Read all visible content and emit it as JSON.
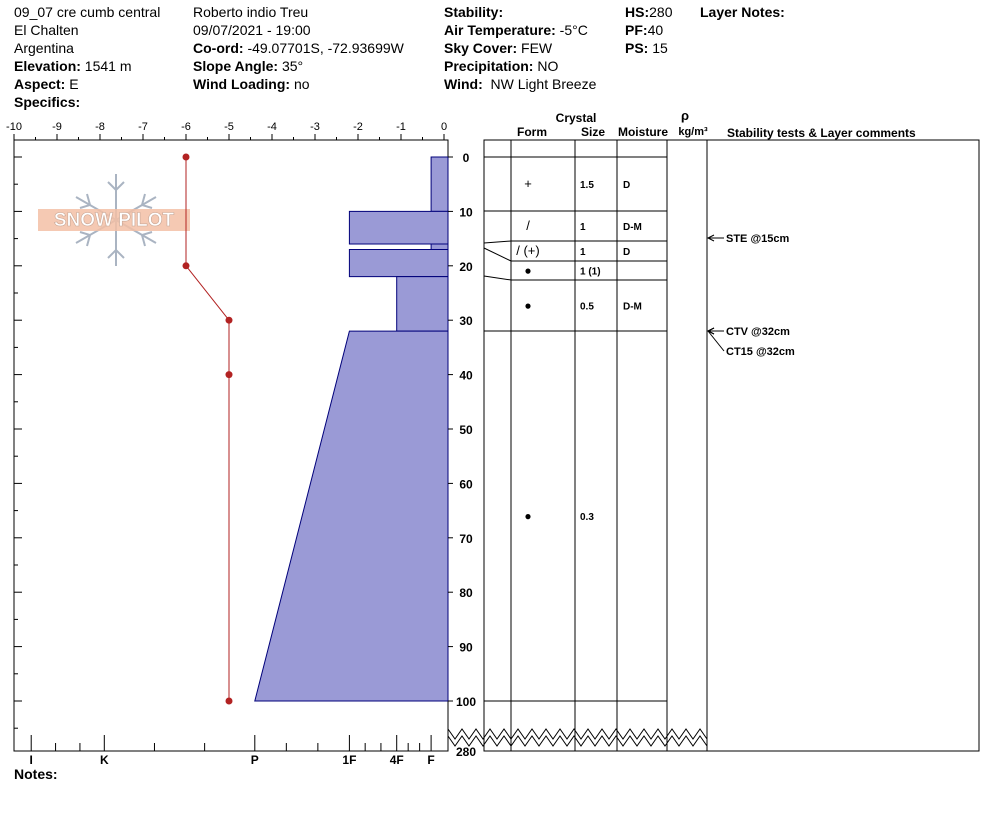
{
  "header": {
    "site_name": "09_07 cre cumb central",
    "location": "El Chalten",
    "country": "Argentina",
    "elevation_label": "Elevation:",
    "elevation_value": "1541 m",
    "aspect_label": "Aspect:",
    "aspect_value": "E",
    "specifics_label": "Specifics:",
    "observer": "Roberto indio Treu",
    "datetime": "09/07/2021 - 19:00",
    "coord_label": "Co-ord:",
    "coord_value": "-49.07701S, -72.93699W",
    "slope_label": "Slope Angle:",
    "slope_value": "35°",
    "windload_label": "Wind Loading:",
    "windload_value": "no",
    "stability_label": "Stability:",
    "airtemp_label": "Air Temperature:",
    "airtemp_value": "-5°C",
    "sky_label": "Sky Cover:",
    "sky_value": "FEW",
    "precip_label": "Precipitation:",
    "precip_value": "NO",
    "wind_label": "Wind:",
    "wind_value": "NW Light Breeze",
    "hs_label": "HS:",
    "hs_value": "280",
    "pf_label": "PF:",
    "pf_value": "40",
    "ps_label": "PS:",
    "ps_value": "15",
    "layer_notes_label": "Layer Notes:",
    "notes_label": "Notes:",
    "logo_text": "SNOW PILOT"
  },
  "columns": {
    "crystal": "Crystal",
    "form": "Form",
    "size": "Size",
    "moisture": "Moisture",
    "rho": "ρ",
    "density_unit": "kg/m³",
    "stability": "Stability tests & Layer comments"
  },
  "colors": {
    "hardness_fill": "#9a9ad6",
    "hardness_stroke": "#00007a",
    "temp_line": "#b22222"
  },
  "chart_data": {
    "type": "snow-profile",
    "temp_axis": {
      "ticks": [
        -10,
        -9,
        -8,
        -7,
        -6,
        -5,
        -4,
        -3,
        -2,
        -1,
        0
      ],
      "range": [
        -10,
        0
      ]
    },
    "depth_axis": {
      "ticks": [
        0,
        10,
        20,
        30,
        40,
        50,
        60,
        70,
        80,
        90,
        100
      ],
      "bottom_label": "280",
      "range": [
        0,
        100
      ]
    },
    "hardness_axis": {
      "labels": [
        "I",
        "K",
        "P",
        "1F",
        "4F",
        "F"
      ],
      "positions": [
        -9.6,
        -7.9,
        -4.4,
        -2.2,
        -1.1,
        -0.3
      ]
    },
    "temperature_profile": [
      {
        "depth": 0,
        "temp": -6
      },
      {
        "depth": 20,
        "temp": -6
      },
      {
        "depth": 30,
        "temp": -5
      },
      {
        "depth": 40,
        "temp": -5
      },
      {
        "depth": 100,
        "temp": -5
      }
    ],
    "hardness_profile": [
      {
        "top": 0,
        "bottom": 10,
        "hardness_top": -0.3,
        "hardness_bottom": -0.3
      },
      {
        "top": 10,
        "bottom": 16,
        "hardness_top": -2.2,
        "hardness_bottom": -2.2
      },
      {
        "top": 16,
        "bottom": 17,
        "hardness_top": -0.3,
        "hardness_bottom": -0.3
      },
      {
        "top": 17,
        "bottom": 22,
        "hardness_top": -2.2,
        "hardness_bottom": -2.2
      },
      {
        "top": 22,
        "bottom": 32,
        "hardness_top": -1.1,
        "hardness_bottom": -1.1
      },
      {
        "top": 32,
        "bottom": 100,
        "hardness_top": -2.2,
        "hardness_bottom": -4.4
      }
    ],
    "layers": [
      {
        "top": 0,
        "bottom": 10,
        "form": "+",
        "size": "1.5",
        "moisture": "D"
      },
      {
        "top": 10,
        "bottom": 15,
        "form": "/",
        "size": "1",
        "moisture": "D-M"
      },
      {
        "top": 15,
        "bottom": 19,
        "form": "/ (+)",
        "size": "1",
        "moisture": "D"
      },
      {
        "top": 19,
        "bottom": 22,
        "form": "●",
        "size": "1 (1)",
        "moisture": ""
      },
      {
        "top": 22,
        "bottom": 32,
        "form": "●",
        "size": "0.5",
        "moisture": "D-M"
      },
      {
        "top": 32,
        "bottom": 100,
        "form": "●",
        "size": "0.3",
        "moisture": ""
      }
    ],
    "stability_tests": [
      {
        "depth": 15,
        "label": "STE @15cm"
      },
      {
        "depth": 32,
        "label": "CTV @32cm"
      },
      {
        "depth": 32,
        "label": "CT15 @32cm"
      }
    ]
  }
}
